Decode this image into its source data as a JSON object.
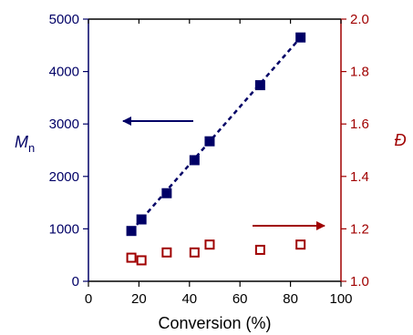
{
  "chart_data": {
    "type": "scatter",
    "title": "",
    "xlabel": "Conversion (%)",
    "xlim": [
      0,
      100
    ],
    "xticks": [
      0,
      20,
      40,
      60,
      80,
      100
    ],
    "y_left": {
      "label_main": "M",
      "label_sub": "n",
      "lim": [
        0,
        5000
      ],
      "ticks": [
        0,
        1000,
        2000,
        3000,
        4000,
        5000
      ],
      "color": "#000066"
    },
    "y_right": {
      "label": "Đ",
      "lim": [
        1.0,
        2.0
      ],
      "ticks": [
        "1.0",
        "1.2",
        "1.4",
        "1.6",
        "1.8",
        "2.0"
      ],
      "color": "#a00000"
    },
    "series": [
      {
        "axis": "left",
        "marker": "filled-square",
        "color": "#000066",
        "x": [
          17,
          21,
          31,
          42,
          48,
          68,
          84
        ],
        "y": [
          960,
          1180,
          1680,
          2310,
          2670,
          3740,
          4650
        ]
      },
      {
        "axis": "right",
        "marker": "open-square",
        "color": "#a00000",
        "x": [
          17,
          21,
          31,
          42,
          48,
          68,
          84
        ],
        "y": [
          1.09,
          1.08,
          1.11,
          1.11,
          1.14,
          1.12,
          1.14
        ]
      }
    ],
    "trendline": {
      "axis": "left",
      "style": "dashed",
      "color": "#000066",
      "x": [
        17,
        84
      ],
      "y": [
        960,
        4650
      ]
    },
    "annotations": [
      {
        "type": "arrow",
        "direction": "left",
        "points_to_axis": "left",
        "color": "#000066"
      },
      {
        "type": "arrow",
        "direction": "right",
        "points_to_axis": "right",
        "color": "#a00000"
      }
    ],
    "grid": false,
    "legend": "none"
  }
}
